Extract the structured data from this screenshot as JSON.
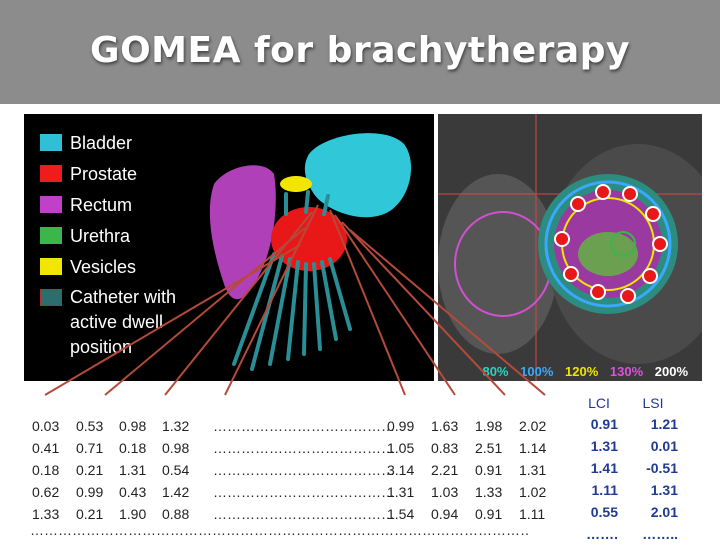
{
  "slide": {
    "title": "GOMEA for brachytherapy"
  },
  "legend": [
    {
      "label": "Bladder",
      "color": "#2fc0d6"
    },
    {
      "label": "Prostate",
      "color": "#ee1c1c"
    },
    {
      "label": "Rectum",
      "color": "#c040c8"
    },
    {
      "label": "Urethra",
      "color": "#3cb54a"
    },
    {
      "label": "Vesicles",
      "color": "#f2e500"
    },
    {
      "label": "Catheter with active dwell position",
      "color": "#2c6e70"
    }
  ],
  "isodose": [
    {
      "label": "80%",
      "color": "#2fd0c0"
    },
    {
      "label": "100%",
      "color": "#3aa8ff"
    },
    {
      "label": "120%",
      "color": "#f2e500"
    },
    {
      "label": "130%",
      "color": "#e04fe0"
    },
    {
      "label": "200%",
      "color": "#ffffff"
    }
  ],
  "left_values": [
    [
      "0.03",
      "0.53",
      "0.98",
      "1.32"
    ],
    [
      "0.41",
      "0.71",
      "0.18",
      "0.98"
    ],
    [
      "0.18",
      "0.21",
      "1.31",
      "0.54"
    ],
    [
      "0.62",
      "0.99",
      "0.43",
      "1.42"
    ],
    [
      "1.33",
      "0.21",
      "1.90",
      "0.88"
    ]
  ],
  "middle_dots": "…………………………………",
  "right_values": [
    [
      "0.99",
      "1.63",
      "1.98",
      "2.02"
    ],
    [
      "1.05",
      "0.83",
      "2.51",
      "1.14"
    ],
    [
      "3.14",
      "2.21",
      "0.91",
      "1.31"
    ],
    [
      "1.31",
      "1.03",
      "1.33",
      "1.02"
    ],
    [
      "1.54",
      "0.94",
      "0.91",
      "1.11"
    ]
  ],
  "bottom_dots": "……………………………………………………………………………………………………………………………………………………",
  "metrics": {
    "headers": [
      "LCI",
      "LSI"
    ],
    "rows": [
      [
        "0.91",
        "1.21"
      ],
      [
        "1.31",
        "0.01"
      ],
      [
        "1.41",
        "-0.51"
      ],
      [
        "1.11",
        "1.31"
      ],
      [
        "0.55",
        "2.01"
      ],
      [
        "…….",
        "…….."
      ]
    ]
  }
}
